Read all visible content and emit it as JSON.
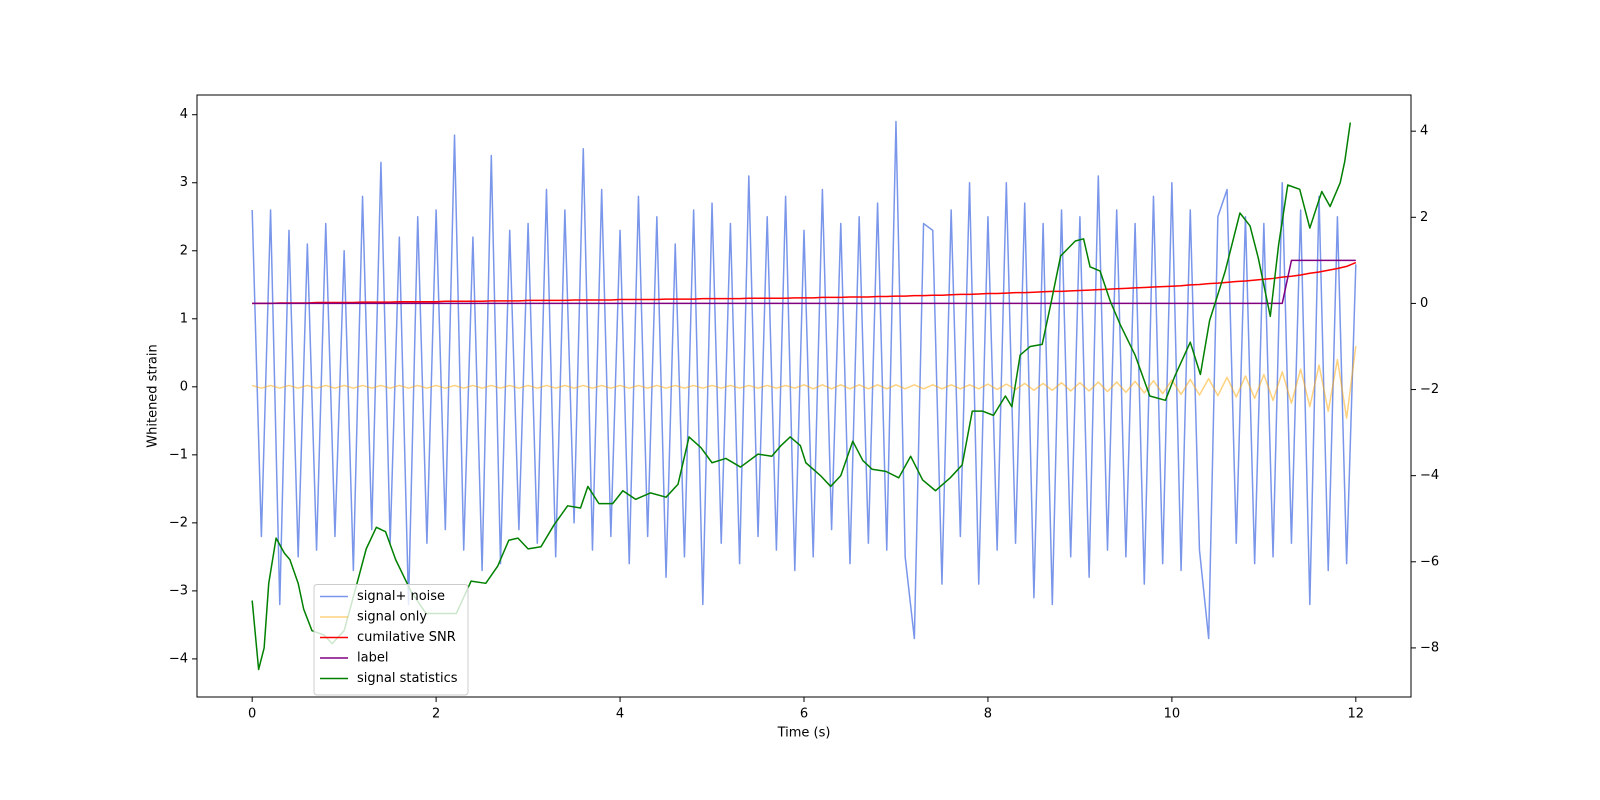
{
  "chart_data": {
    "type": "line",
    "xlabel": "Time (s)",
    "ylabel": "Whitened strain",
    "xlim": [
      -0.6,
      12.6
    ],
    "ylim": [
      -4.56,
      4.29
    ],
    "y2lim": [
      -9.14,
      4.84
    ],
    "xticks": [
      0,
      2,
      4,
      6,
      8,
      10,
      12
    ],
    "yticks": [
      {
        "value": -4,
        "label": "−4"
      },
      {
        "value": -3,
        "label": "−3"
      },
      {
        "value": -2,
        "label": "−2"
      },
      {
        "value": -1,
        "label": "−1"
      },
      0,
      1,
      2,
      3,
      4
    ],
    "y2ticks": [
      {
        "value": -8,
        "label": "−8"
      },
      {
        "value": -6,
        "label": "−6"
      },
      {
        "value": -4,
        "label": "−4"
      },
      {
        "value": -2,
        "label": "−2"
      },
      0,
      2,
      4
    ],
    "legend_loc": "lower left",
    "x": [
      0,
      0.1,
      0.2,
      0.3,
      0.4,
      0.5,
      0.6,
      0.7,
      0.8,
      0.9,
      1.0,
      1.1,
      1.2,
      1.3,
      1.4,
      1.5,
      1.6,
      1.7,
      1.8,
      1.9,
      2.0,
      2.1,
      2.2,
      2.3,
      2.4,
      2.5,
      2.6,
      2.7,
      2.8,
      2.9,
      3.0,
      3.1,
      3.2,
      3.3,
      3.4,
      3.5,
      3.6,
      3.7,
      3.8,
      3.9,
      4.0,
      4.1,
      4.2,
      4.3,
      4.4,
      4.5,
      4.6,
      4.7,
      4.8,
      4.9,
      5.0,
      5.1,
      5.2,
      5.3,
      5.4,
      5.5,
      5.6,
      5.7,
      5.8,
      5.9,
      6.0,
      6.1,
      6.2,
      6.3,
      6.4,
      6.5,
      6.6,
      6.7,
      6.8,
      6.9,
      7.0,
      7.1,
      7.2,
      7.3,
      7.4,
      7.5,
      7.6,
      7.7,
      7.8,
      7.9,
      8.0,
      8.1,
      8.2,
      8.3,
      8.4,
      8.5,
      8.6,
      8.7,
      8.8,
      8.9,
      9.0,
      9.1,
      9.2,
      9.3,
      9.4,
      9.5,
      9.6,
      9.7,
      9.8,
      9.9,
      10.0,
      10.1,
      10.2,
      10.3,
      10.4,
      10.5,
      10.6,
      10.7,
      10.8,
      10.9,
      11.0,
      11.1,
      11.2,
      11.3,
      11.4,
      11.5,
      11.6,
      11.7,
      11.8,
      11.9,
      12.0
    ],
    "series": [
      {
        "name": "signal+ noise",
        "color": "#4169e1",
        "opacity": 0.7,
        "values": [
          2.6,
          -2.2,
          2.6,
          -3.2,
          2.3,
          -2.5,
          2.1,
          -2.4,
          2.4,
          -2.2,
          2.0,
          -2.7,
          2.8,
          -2.1,
          3.3,
          -2.3,
          2.2,
          -3.2,
          2.5,
          -2.3,
          2.6,
          -2.1,
          3.7,
          -2.4,
          2.2,
          -2.7,
          3.4,
          -2.6,
          2.3,
          -2.1,
          2.4,
          -2.3,
          2.9,
          -2.5,
          2.6,
          -2.0,
          3.5,
          -2.4,
          2.9,
          -2.2,
          2.3,
          -2.6,
          2.8,
          -2.2,
          2.5,
          -2.8,
          2.1,
          -2.5,
          2.6,
          -3.2,
          2.7,
          -2.3,
          2.4,
          -2.6,
          3.1,
          -2.2,
          2.5,
          -2.4,
          2.8,
          -2.7,
          2.3,
          -2.5,
          2.9,
          -2.1,
          2.4,
          -2.6,
          2.5,
          -2.3,
          2.7,
          -2.4,
          3.9,
          -2.5,
          -3.7,
          2.4,
          2.3,
          -2.9,
          2.6,
          -2.2,
          3.0,
          -2.9,
          2.5,
          -2.4,
          3.0,
          -2.3,
          2.7,
          -3.1,
          2.4,
          -3.2,
          2.6,
          -2.5,
          2.5,
          -2.8,
          3.1,
          -2.4,
          2.6,
          -2.5,
          2.4,
          -2.9,
          2.8,
          -2.6,
          3.0,
          -2.7,
          2.6,
          -2.4,
          -3.7,
          2.5,
          2.9,
          -2.3,
          2.5,
          -2.6,
          2.4,
          -2.5,
          3.0,
          -2.3,
          2.6,
          -3.2,
          2.8,
          -2.7,
          2.5,
          -2.6,
          1.8
        ]
      },
      {
        "name": "signal only",
        "color": "#ffa500",
        "opacity": 0.5,
        "values": [
          0.02,
          -0.02,
          0.02,
          -0.02,
          0.02,
          -0.02,
          0.02,
          -0.02,
          0.02,
          -0.02,
          0.02,
          -0.02,
          0.02,
          -0.02,
          0.02,
          -0.02,
          0.02,
          -0.02,
          0.02,
          -0.02,
          0.02,
          -0.02,
          0.02,
          -0.02,
          0.02,
          -0.02,
          0.02,
          -0.02,
          0.02,
          -0.02,
          0.02,
          -0.02,
          0.02,
          -0.02,
          0.02,
          -0.02,
          0.02,
          -0.02,
          0.02,
          -0.02,
          0.02,
          -0.02,
          0.02,
          -0.02,
          0.02,
          -0.02,
          0.02,
          -0.02,
          0.02,
          -0.02,
          0.02,
          -0.02,
          0.02,
          -0.02,
          0.02,
          -0.02,
          0.02,
          -0.02,
          0.02,
          -0.02,
          0.03,
          -0.03,
          0.03,
          -0.03,
          0.03,
          -0.03,
          0.03,
          -0.03,
          0.03,
          -0.03,
          0.03,
          -0.03,
          0.03,
          -0.03,
          0.03,
          -0.03,
          0.03,
          -0.03,
          0.03,
          -0.03,
          0.04,
          -0.04,
          0.04,
          -0.04,
          0.05,
          -0.05,
          0.05,
          -0.05,
          0.06,
          -0.06,
          0.06,
          -0.06,
          0.07,
          -0.07,
          0.07,
          -0.08,
          0.08,
          -0.09,
          0.09,
          -0.1,
          0.1,
          -0.11,
          0.11,
          -0.12,
          0.12,
          -0.13,
          0.14,
          -0.15,
          0.16,
          -0.17,
          0.18,
          -0.2,
          0.22,
          -0.24,
          0.26,
          -0.29,
          0.32,
          -0.36,
          0.4,
          -0.46,
          0.6
        ]
      },
      {
        "name": "cumilative SNR",
        "color": "#ff0000",
        "axis": "y2",
        "values": [
          0,
          0,
          0,
          0.01,
          0.01,
          0.01,
          0.01,
          0.02,
          0.02,
          0.02,
          0.02,
          0.02,
          0.03,
          0.03,
          0.03,
          0.03,
          0.04,
          0.04,
          0.04,
          0.04,
          0.04,
          0.05,
          0.05,
          0.05,
          0.05,
          0.05,
          0.06,
          0.06,
          0.06,
          0.06,
          0.07,
          0.07,
          0.07,
          0.07,
          0.07,
          0.08,
          0.08,
          0.08,
          0.08,
          0.08,
          0.09,
          0.09,
          0.09,
          0.09,
          0.09,
          0.1,
          0.1,
          0.1,
          0.1,
          0.11,
          0.11,
          0.11,
          0.11,
          0.11,
          0.12,
          0.12,
          0.12,
          0.12,
          0.12,
          0.13,
          0.13,
          0.13,
          0.14,
          0.14,
          0.14,
          0.15,
          0.15,
          0.15,
          0.16,
          0.16,
          0.17,
          0.17,
          0.18,
          0.18,
          0.19,
          0.19,
          0.2,
          0.21,
          0.21,
          0.22,
          0.23,
          0.23,
          0.24,
          0.25,
          0.25,
          0.26,
          0.27,
          0.28,
          0.28,
          0.29,
          0.3,
          0.31,
          0.32,
          0.33,
          0.34,
          0.35,
          0.36,
          0.37,
          0.38,
          0.39,
          0.4,
          0.41,
          0.43,
          0.44,
          0.46,
          0.47,
          0.49,
          0.51,
          0.52,
          0.54,
          0.56,
          0.58,
          0.61,
          0.63,
          0.66,
          0.7,
          0.73,
          0.77,
          0.81,
          0.86,
          0.95
        ]
      },
      {
        "name": "label",
        "color": "#800080",
        "axis": "y2",
        "values": [
          0,
          0,
          0,
          0,
          0,
          0,
          0,
          0,
          0,
          0,
          0,
          0,
          0,
          0,
          0,
          0,
          0,
          0,
          0,
          0,
          0,
          0,
          0,
          0,
          0,
          0,
          0,
          0,
          0,
          0,
          0,
          0,
          0,
          0,
          0,
          0,
          0,
          0,
          0,
          0,
          0,
          0,
          0,
          0,
          0,
          0,
          0,
          0,
          0,
          0,
          0,
          0,
          0,
          0,
          0,
          0,
          0,
          0,
          0,
          0,
          0,
          0,
          0,
          0,
          0,
          0,
          0,
          0,
          0,
          0,
          0,
          0,
          0,
          0,
          0,
          0,
          0,
          0,
          0,
          0,
          0,
          0,
          0,
          0,
          0,
          0,
          0,
          0,
          0,
          0,
          0,
          0,
          0,
          0,
          0,
          0,
          0,
          0,
          0,
          0,
          0,
          0,
          0,
          0,
          0,
          0,
          0,
          0,
          0,
          0,
          0,
          0,
          0,
          1,
          1,
          1,
          1,
          1,
          1,
          1,
          1
        ]
      },
      {
        "name": "signal statistics",
        "color": "#008000",
        "axis": "y2",
        "x": [
          0,
          0.07,
          0.13,
          0.18,
          0.26,
          0.35,
          0.41,
          0.5,
          0.56,
          0.65,
          0.78,
          0.87,
          1.0,
          1.14,
          1.24,
          1.35,
          1.45,
          1.56,
          1.73,
          1.89,
          2.05,
          2.22,
          2.38,
          2.54,
          2.67,
          2.79,
          2.89,
          3.0,
          3.14,
          3.28,
          3.43,
          3.57,
          3.65,
          3.77,
          3.92,
          4.03,
          4.17,
          4.33,
          4.5,
          4.63,
          4.75,
          4.88,
          5.0,
          5.15,
          5.31,
          5.5,
          5.65,
          5.75,
          5.85,
          5.96,
          6.02,
          6.18,
          6.29,
          6.4,
          6.53,
          6.64,
          6.74,
          6.89,
          7.03,
          7.16,
          7.29,
          7.43,
          7.59,
          7.72,
          7.83,
          7.94,
          8.06,
          8.19,
          8.26,
          8.35,
          8.46,
          8.59,
          8.68,
          8.79,
          8.95,
          9.04,
          9.11,
          9.22,
          9.33,
          9.44,
          9.6,
          9.76,
          9.93,
          10.03,
          10.2,
          10.31,
          10.41,
          10.58,
          10.74,
          10.85,
          10.94,
          11.07,
          11.16,
          11.26,
          11.39,
          11.5,
          11.63,
          11.72,
          11.83,
          11.88,
          11.94
        ],
        "values": [
          -6.9,
          -8.5,
          -8.0,
          -6.5,
          -5.45,
          -5.8,
          -5.95,
          -6.5,
          -7.1,
          -7.6,
          -7.7,
          -7.9,
          -7.6,
          -6.5,
          -5.7,
          -5.2,
          -5.3,
          -5.95,
          -6.7,
          -7.2,
          -7.2,
          -7.2,
          -6.45,
          -6.5,
          -6.1,
          -5.5,
          -5.45,
          -5.7,
          -5.65,
          -5.15,
          -4.7,
          -4.75,
          -4.25,
          -4.65,
          -4.65,
          -4.35,
          -4.55,
          -4.4,
          -4.5,
          -4.2,
          -3.1,
          -3.35,
          -3.7,
          -3.6,
          -3.8,
          -3.5,
          -3.55,
          -3.3,
          -3.1,
          -3.3,
          -3.7,
          -4.0,
          -4.25,
          -4.0,
          -3.2,
          -3.65,
          -3.85,
          -3.9,
          -4.05,
          -3.55,
          -4.1,
          -4.35,
          -4.05,
          -3.75,
          -2.5,
          -2.5,
          -2.6,
          -2.15,
          -2.4,
          -1.2,
          -1.0,
          -0.95,
          -0.05,
          1.1,
          1.45,
          1.5,
          0.85,
          0.75,
          0.05,
          -0.5,
          -1.2,
          -2.15,
          -2.25,
          -1.7,
          -0.9,
          -1.65,
          -0.4,
          0.75,
          2.1,
          1.8,
          1.05,
          -0.3,
          1.35,
          2.75,
          2.65,
          1.75,
          2.6,
          2.25,
          2.8,
          3.3,
          4.2
        ]
      }
    ]
  }
}
